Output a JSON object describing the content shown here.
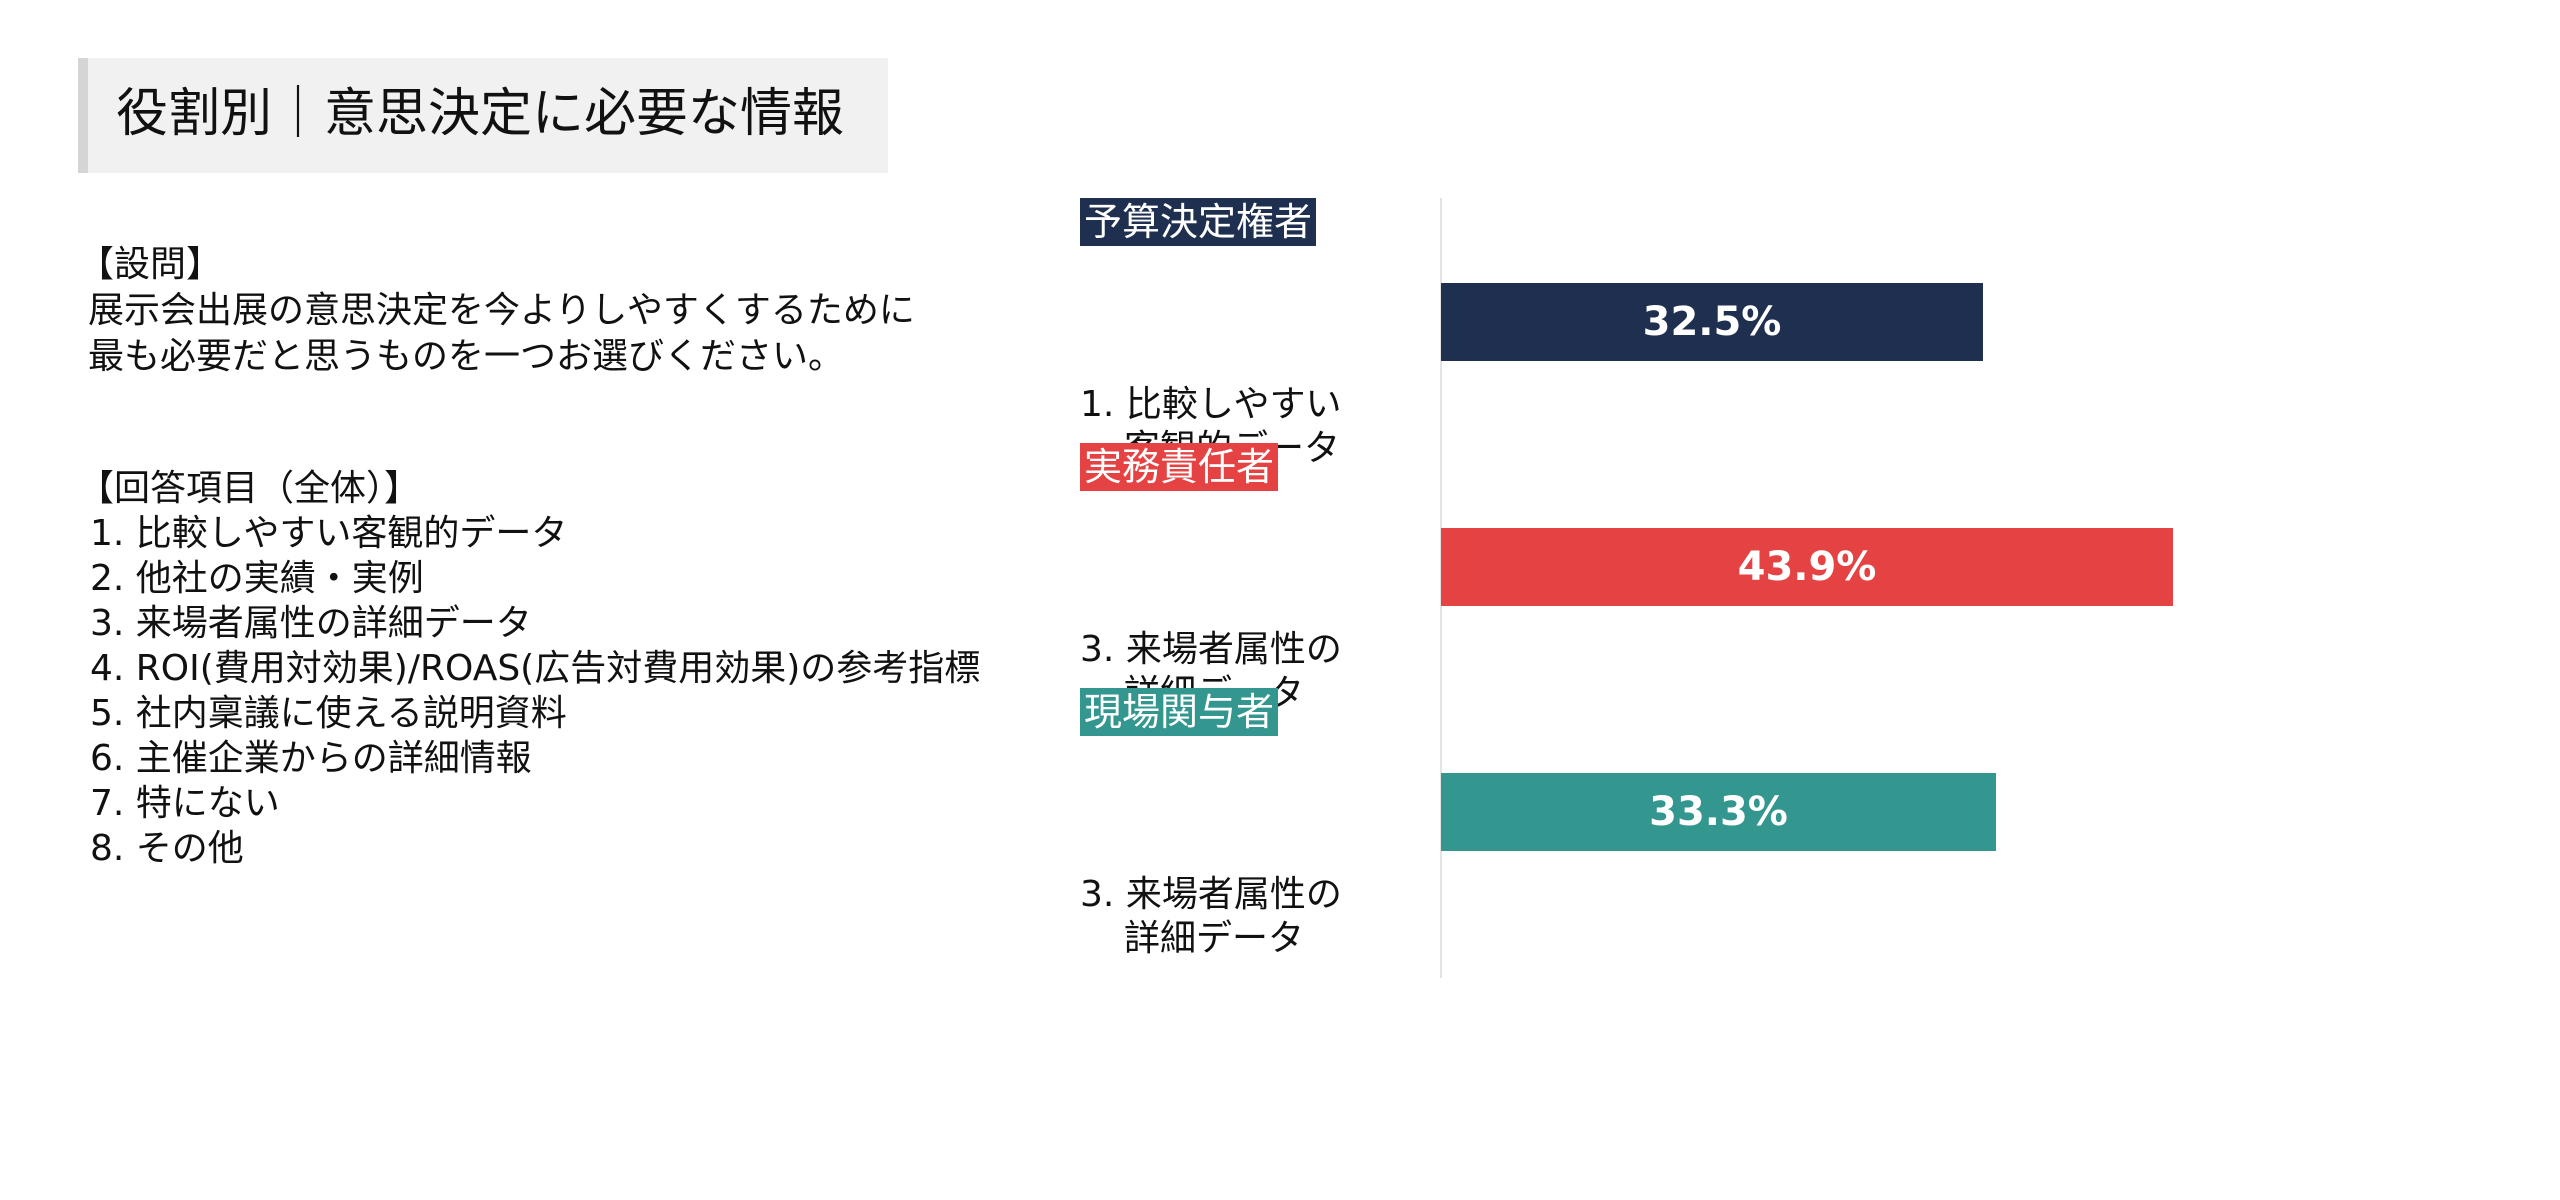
{
  "title": "役割別｜意思決定に必要な情報",
  "question": {
    "heading": "【設問】",
    "lines": [
      "展示会出展の意思決定を今よりしやすくするために",
      "最も必要だと思うものを一つお選びください。"
    ]
  },
  "answers": {
    "heading": "【回答項目（全体）】",
    "items": [
      "1. 比較しやすい客観的データ",
      "2. 他社の実績・実例",
      "3. 来場者属性の詳細データ",
      "4. ROI(費用対効果)/ROAS(広告対費用効果)の参考指標",
      "5. 社内稟議に使える説明資料",
      "6. 主催企業からの詳細情報",
      "7. 特にない",
      "8. その他"
    ]
  },
  "chart_data": {
    "type": "bar",
    "orientation": "horizontal",
    "categories": [
      "予算決定権者",
      "実務責任者",
      "現場関与者"
    ],
    "values": [
      32.5,
      43.9,
      33.3
    ],
    "value_labels": [
      "32.5%",
      "43.9%",
      "33.3%"
    ],
    "top_answers": [
      {
        "number": "1.",
        "line1": "比較しやすい",
        "line2": "客観的データ"
      },
      {
        "number": "3.",
        "line1": "来場者属性の",
        "line2": "詳細データ"
      },
      {
        "number": "3.",
        "line1": "来場者属性の",
        "line2": "詳細データ"
      }
    ],
    "colors": [
      "#1f2f50",
      "#e54343",
      "#33968f"
    ],
    "xlim": [
      0,
      60
    ],
    "unit": "%",
    "grid": false,
    "legend": "none"
  }
}
